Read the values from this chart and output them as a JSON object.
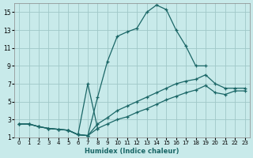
{
  "xlabel": "Humidex (Indice chaleur)",
  "background_color": "#c8eaea",
  "grid_color": "#a0c8c8",
  "line_color": "#1a6666",
  "xlim": [
    -0.5,
    23.5
  ],
  "ylim": [
    1,
    16
  ],
  "xticks": [
    0,
    1,
    2,
    3,
    4,
    5,
    6,
    7,
    8,
    9,
    10,
    11,
    12,
    13,
    14,
    15,
    16,
    17,
    18,
    19,
    20,
    21,
    22,
    23
  ],
  "yticks": [
    1,
    3,
    5,
    7,
    9,
    11,
    13,
    15
  ],
  "series1_x": [
    0,
    1,
    2,
    3,
    4,
    5,
    6,
    7,
    8,
    9,
    10,
    11,
    12,
    13,
    14,
    15,
    16,
    17,
    18,
    19
  ],
  "series1_y": [
    2.5,
    2.5,
    2.2,
    2.0,
    1.9,
    1.8,
    1.3,
    1.2,
    5.5,
    9.5,
    12.3,
    12.8,
    13.2,
    15.0,
    15.8,
    15.3,
    13.0,
    11.2,
    9.0,
    9.0
  ],
  "series2_x": [
    5,
    6,
    7,
    8
  ],
  "series2_y": [
    1.8,
    1.3,
    7.0,
    2.0
  ],
  "series3_x": [
    0,
    1,
    2,
    3,
    4,
    5,
    6,
    7,
    8,
    9,
    10,
    11,
    12,
    13,
    14,
    15,
    16,
    17,
    18,
    19,
    20,
    21,
    22,
    23
  ],
  "series3_y": [
    2.5,
    2.5,
    2.2,
    2.0,
    1.9,
    1.8,
    1.3,
    1.2,
    2.5,
    3.2,
    4.0,
    4.5,
    5.0,
    5.5,
    6.0,
    6.5,
    7.0,
    7.3,
    7.5,
    8.0,
    7.0,
    6.5,
    6.5,
    6.5
  ],
  "series4_x": [
    0,
    1,
    2,
    3,
    4,
    5,
    6,
    7,
    8,
    9,
    10,
    11,
    12,
    13,
    14,
    15,
    16,
    17,
    18,
    19,
    20,
    21,
    22,
    23
  ],
  "series4_y": [
    2.5,
    2.5,
    2.2,
    2.0,
    1.9,
    1.8,
    1.3,
    1.2,
    2.0,
    2.5,
    3.0,
    3.3,
    3.8,
    4.2,
    4.7,
    5.2,
    5.6,
    6.0,
    6.3,
    6.8,
    6.0,
    5.8,
    6.2,
    6.2
  ]
}
